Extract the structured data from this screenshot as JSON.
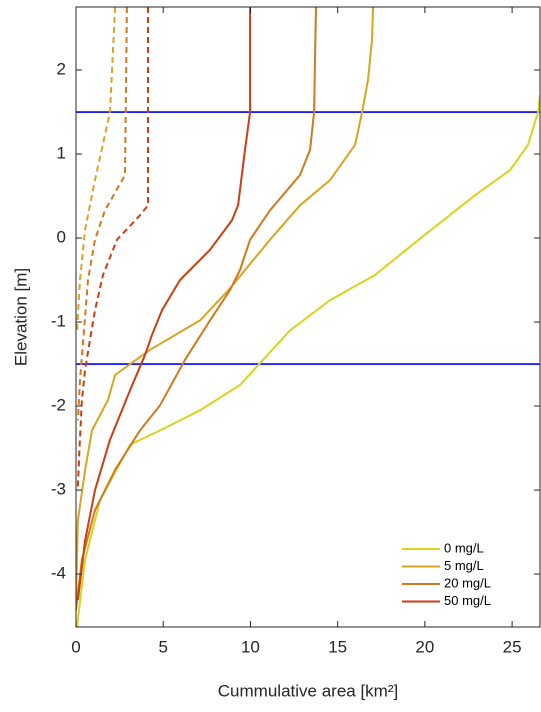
{
  "chart_data": {
    "type": "line",
    "xlabel": "Cummulative area [km²]",
    "ylabel": "Elevation [m]",
    "xlim": [
      0,
      26.6
    ],
    "ylim": [
      -4.63,
      2.75
    ],
    "xticks": [
      0,
      5,
      10,
      15,
      20,
      25
    ],
    "yticks": [
      -4,
      -3,
      -2,
      -1,
      0,
      1,
      2
    ],
    "legend": "lower right",
    "hlines": [
      {
        "value": 1.5,
        "color": "#0000ff"
      },
      {
        "value": -1.5,
        "color": "#0000ff"
      }
    ],
    "series": [
      {
        "name": "0 mg/L",
        "color": "#d8d31c",
        "x": [
          0.06,
          0.52,
          1.38,
          3.1,
          4.82,
          7.11,
          9.4,
          12.27,
          14.56,
          17.14,
          20.01,
          22.88,
          24.89,
          25.92,
          26.49,
          26.6
        ],
        "values": [
          -4.63,
          -3.83,
          -3.12,
          -2.46,
          -2.29,
          -2.05,
          -1.75,
          -1.1,
          -0.74,
          -0.44,
          0.04,
          0.51,
          0.81,
          1.11,
          1.5,
          1.7
        ]
      },
      {
        "name": "5 mg/L",
        "color": "#d8a520",
        "x": [
          17.03,
          16.97,
          16.74,
          16.4,
          16.0,
          14.56,
          12.84,
          11.12,
          8.83,
          7.11,
          4.24,
          2.24,
          1.83,
          0.92,
          0.52,
          0.11,
          0
        ],
        "values": [
          2.75,
          2.36,
          1.88,
          1.5,
          1.11,
          0.69,
          0.39,
          -0.02,
          -0.6,
          -0.98,
          -1.33,
          -1.63,
          -1.93,
          -2.29,
          -2.76,
          -3.36,
          -4.31
        ]
      },
      {
        "name": "20 mg/L",
        "color": "#d07a1b",
        "x": [
          13.76,
          13.7,
          13.65,
          13.42,
          12.84,
          11.12,
          9.98,
          9.4,
          8.83,
          7.68,
          6.25,
          4.82,
          3.67,
          2.24,
          1.09,
          0.34,
          0
        ],
        "values": [
          2.75,
          2.12,
          1.5,
          1.05,
          0.75,
          0.33,
          -0.02,
          -0.38,
          -0.62,
          -0.98,
          -1.45,
          -1.99,
          -2.29,
          -2.76,
          -3.24,
          -3.83,
          -4.43
        ]
      },
      {
        "name": "50 mg/L",
        "color": "#cc3d14",
        "x": [
          9.98,
          9.98,
          9.69,
          9.29,
          8.94,
          7.68,
          5.96,
          4.93,
          4.36,
          3.96,
          3.1,
          1.95,
          1.09,
          0.52,
          0.11
        ],
        "values": [
          2.75,
          1.5,
          1.05,
          0.39,
          0.21,
          -0.14,
          -0.5,
          -0.86,
          -1.15,
          -1.39,
          -1.81,
          -2.4,
          -3.0,
          -3.6,
          -4.31
        ]
      },
      {
        "color": "#d8a520",
        "dash": true,
        "x": [
          2.24,
          1.95,
          1.09,
          0.52,
          0.23,
          0.06
        ],
        "values": [
          2.75,
          1.5,
          0.69,
          0.1,
          -0.5,
          -1.1
        ]
      },
      {
        "color": "#d07a1b",
        "dash": true,
        "x": [
          2.92,
          2.81,
          1.66,
          1.09,
          0.69,
          0.46,
          0.23,
          0.11
        ],
        "values": [
          2.75,
          0.75,
          0.33,
          -0.02,
          -0.5,
          -1.1,
          -1.69,
          -2.17
        ]
      },
      {
        "color": "#cc3d14",
        "dash": true,
        "x": [
          4.13,
          4.13,
          3.67,
          2.35,
          1.55,
          1.09,
          0.8,
          0.52,
          0.34,
          0.2,
          0.1
        ],
        "values": [
          2.75,
          0.39,
          0.27,
          -0.02,
          -0.44,
          -0.86,
          -1.21,
          -1.57,
          -1.93,
          -2.5,
          -3.0
        ]
      }
    ]
  }
}
